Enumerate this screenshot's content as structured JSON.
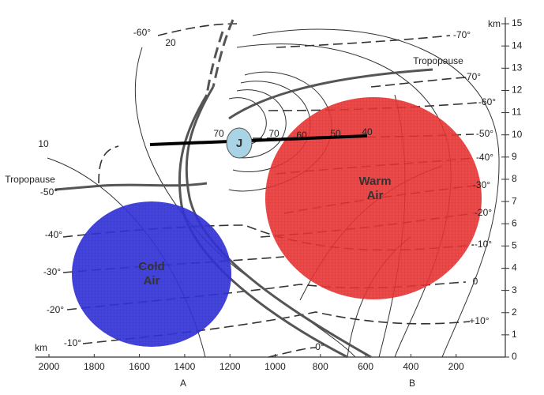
{
  "x_axis": {
    "unit": "km",
    "labels": [
      "2000",
      "1800",
      "1600",
      "1400",
      "1200",
      "1000",
      "800",
      "600",
      "400",
      "200"
    ],
    "points": [
      "A",
      "B"
    ]
  },
  "y_axis": {
    "unit": "km",
    "labels": [
      "0",
      "1",
      "2",
      "3",
      "4",
      "5",
      "6",
      "7",
      "8",
      "9",
      "10",
      "11",
      "12",
      "13",
      "14",
      "15"
    ]
  },
  "tropopause_labels": [
    "Tropopause",
    "Tropopause"
  ],
  "isotherm_labels": [
    "-60°",
    "-70°",
    "-70°",
    "-60°",
    "-50°",
    "-40°",
    "-30°",
    "-20°",
    "-10°",
    "0",
    "+10°",
    "0°",
    "-50°",
    "-40°",
    "-30°",
    "-20°",
    "-10°"
  ],
  "isotach_labels": [
    "20",
    "10",
    "70",
    "70",
    "60",
    "50",
    "40"
  ],
  "jet": "J",
  "air_masses": [
    {
      "lines": [
        "Cold",
        "Air"
      ]
    },
    {
      "lines": [
        "Warm",
        "Air"
      ]
    }
  ]
}
